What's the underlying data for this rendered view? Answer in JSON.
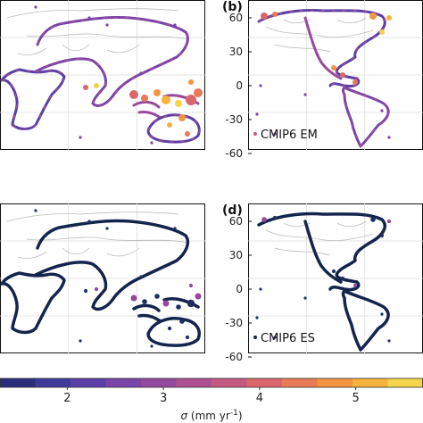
{
  "panels": [
    {
      "id": "a",
      "label": "",
      "region": "eastern",
      "yticks": [],
      "legend": "",
      "style": "em"
    },
    {
      "id": "b",
      "label": "(b)",
      "region": "western",
      "yticks": [
        "60",
        "30",
        "0",
        "-30",
        "-60"
      ],
      "legend": "CMIP6 EM",
      "style": "em"
    },
    {
      "id": "c",
      "label": "",
      "region": "eastern",
      "yticks": [],
      "legend": "",
      "style": "es"
    },
    {
      "id": "d",
      "label": "(d)",
      "region": "western",
      "yticks": [
        "60",
        "30",
        "0",
        "-30",
        "-60"
      ],
      "legend": "CMIP6 ES",
      "style": "es"
    }
  ],
  "colorbar": {
    "ticks": [
      "2",
      "3",
      "4",
      "5"
    ],
    "tick_values": [
      2,
      3,
      4,
      5
    ],
    "range": [
      1.3,
      5.7
    ],
    "label_symbol": "σ",
    "label_units": "(mm yr",
    "label_exp": "-1",
    "label_close": ")",
    "colors": [
      "#2a2e7a",
      "#3f3a9a",
      "#5a3fa6",
      "#7a44a8",
      "#94499f",
      "#ad4f92",
      "#c45a80",
      "#d9676b",
      "#e87a55",
      "#f29440",
      "#f6b23a",
      "#f3d44a"
    ]
  },
  "chart_data": {
    "type": "map",
    "title": "",
    "colorbar_variable": "σ (mm yr^-1)",
    "colorbar_ticks": [
      2,
      3,
      4,
      5
    ],
    "panels": [
      {
        "label": "(b)",
        "legend": "CMIP6 EM",
        "lat_ticks": [
          60,
          30,
          0,
          -30,
          -60
        ]
      },
      {
        "label": "(d)",
        "legend": "CMIP6 ES",
        "lat_ticks": [
          60,
          30,
          0,
          -30,
          -60
        ]
      }
    ]
  }
}
